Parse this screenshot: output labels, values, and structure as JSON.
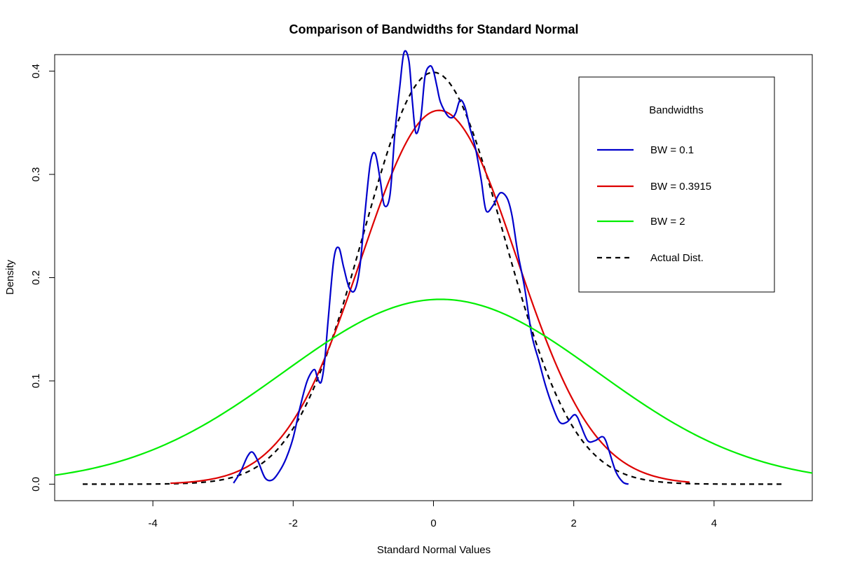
{
  "chart_data": {
    "type": "line",
    "title": "Comparison of Bandwidths for Standard Normal",
    "xlabel": "Standard Normal Values",
    "ylabel": "Density",
    "xlim": [
      -5.4,
      5.4
    ],
    "ylim": [
      -0.016,
      0.416
    ],
    "x_ticks": [
      -4,
      -2,
      0,
      2,
      4
    ],
    "x_tick_labels": [
      "-4",
      "-2",
      "0",
      "2",
      "4"
    ],
    "y_ticks": [
      0.0,
      0.1,
      0.2,
      0.3,
      0.4
    ],
    "y_tick_labels": [
      "0.0",
      "0.1",
      "0.2",
      "0.3",
      "0.4"
    ],
    "grid": false,
    "legend": {
      "title": "Bandwidths",
      "placement": "top-right",
      "entries": [
        "BW = 0.1",
        "BW = 0.3915",
        "BW = 2",
        "Actual Dist."
      ]
    },
    "series": [
      {
        "name": "BW = 0.1",
        "color": "#0000CC",
        "dash": false,
        "x": [
          -2.85,
          -2.75,
          -2.65,
          -2.58,
          -2.5,
          -2.4,
          -2.3,
          -2.2,
          -2.1,
          -2.0,
          -1.9,
          -1.8,
          -1.7,
          -1.65,
          -1.6,
          -1.55,
          -1.5,
          -1.42,
          -1.35,
          -1.28,
          -1.2,
          -1.12,
          -1.05,
          -0.98,
          -0.9,
          -0.83,
          -0.76,
          -0.7,
          -0.62,
          -0.55,
          -0.48,
          -0.42,
          -0.35,
          -0.3,
          -0.25,
          -0.18,
          -0.12,
          -0.05,
          0.0,
          0.05,
          0.1,
          0.2,
          0.27,
          0.32,
          0.38,
          0.45,
          0.52,
          0.6,
          0.68,
          0.75,
          0.85,
          0.95,
          1.05,
          1.12,
          1.2,
          1.3,
          1.4,
          1.5,
          1.6,
          1.7,
          1.8,
          1.9,
          2.0,
          2.05,
          2.1,
          2.2,
          2.3,
          2.4,
          2.45,
          2.5,
          2.6,
          2.7,
          2.78
        ],
        "y": [
          0.001,
          0.012,
          0.027,
          0.031,
          0.022,
          0.006,
          0.004,
          0.012,
          0.025,
          0.045,
          0.075,
          0.1,
          0.111,
          0.102,
          0.099,
          0.12,
          0.16,
          0.218,
          0.229,
          0.21,
          0.19,
          0.188,
          0.21,
          0.26,
          0.311,
          0.32,
          0.295,
          0.27,
          0.28,
          0.34,
          0.385,
          0.418,
          0.41,
          0.37,
          0.34,
          0.355,
          0.395,
          0.405,
          0.4,
          0.385,
          0.37,
          0.357,
          0.355,
          0.36,
          0.372,
          0.365,
          0.345,
          0.325,
          0.295,
          0.265,
          0.27,
          0.282,
          0.277,
          0.26,
          0.225,
          0.19,
          0.145,
          0.12,
          0.095,
          0.075,
          0.06,
          0.06,
          0.067,
          0.065,
          0.057,
          0.042,
          0.042,
          0.046,
          0.043,
          0.033,
          0.012,
          0.002,
          0.0
        ],
        "smooth": true
      },
      {
        "name": "BW = 0.3915",
        "color": "#DD0000",
        "dash": false,
        "kde": {
          "mean": 0.08,
          "sd": 1.105,
          "peak": 0.362,
          "xmin": -3.75,
          "xmax": 3.65
        }
      },
      {
        "name": "BW = 2",
        "color": "#00EE00",
        "dash": false,
        "kde": {
          "mean": 0.1,
          "sd": 2.235,
          "peak": 0.179,
          "xmin": -5.4,
          "xmax": 5.4
        }
      },
      {
        "name": "Actual Dist.",
        "color": "#000000",
        "dash": true,
        "kde": {
          "mean": 0.0,
          "sd": 1.0,
          "peak": 0.3989,
          "xmin": -5.0,
          "xmax": 5.0
        }
      }
    ]
  }
}
